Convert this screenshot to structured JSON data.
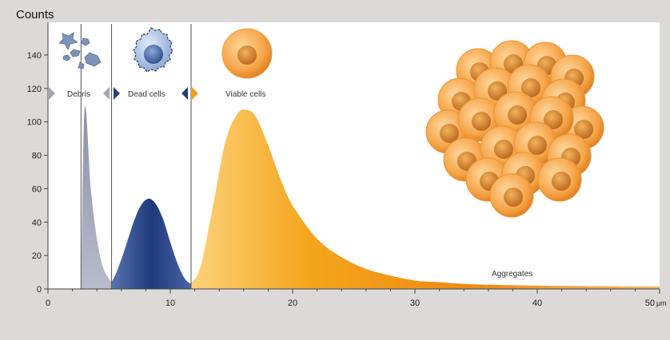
{
  "chart_data": {
    "type": "area",
    "title": "Counts",
    "xlabel": "",
    "ylabel": "Counts",
    "x_unit": "µm",
    "xlim": [
      0,
      50
    ],
    "ylim": [
      0,
      150
    ],
    "x_ticks": [
      0,
      10,
      20,
      30,
      40,
      50
    ],
    "x_tick_labels": [
      "0",
      "10",
      "20",
      "30",
      "40",
      "50"
    ],
    "y_ticks": [
      0,
      20,
      40,
      60,
      80,
      100,
      120,
      140
    ],
    "grid": false,
    "gates": [
      2.7,
      5.2,
      11.7
    ],
    "regions": [
      {
        "name": "Debris",
        "color": "#9a9db0",
        "x": [
          2.7,
          3.0,
          3.5,
          4.0,
          4.5,
          5.0,
          5.2
        ],
        "y": [
          0,
          108,
          60,
          30,
          13,
          6,
          4
        ]
      },
      {
        "name": "Dead cells",
        "color": "#2e4a8a",
        "x": [
          5.2,
          5.6,
          6.2,
          7.0,
          7.6,
          8.2,
          8.8,
          9.4,
          10.0,
          10.6,
          11.2,
          11.7
        ],
        "y": [
          4,
          10,
          22,
          40,
          50,
          54,
          51,
          42,
          28,
          15,
          6,
          3
        ]
      },
      {
        "name": "Viable cells",
        "color": "#f0a020",
        "x": [
          11.7,
          12.5,
          13.5,
          14.5,
          15.5,
          16.3,
          17.0,
          18.0,
          19.0,
          20.0,
          22.0,
          24.0,
          26.0,
          28.0,
          30.0,
          32.0,
          34.0,
          36.0,
          38.0,
          40.0,
          42.0,
          45.0,
          48.0,
          50.0
        ],
        "y": [
          3,
          14,
          50,
          88,
          105,
          107,
          103,
          86,
          66,
          50,
          30,
          19,
          12,
          8,
          5,
          4,
          3,
          2.5,
          2.2,
          2,
          1.8,
          1.6,
          1.5,
          1.5
        ]
      }
    ],
    "annotations": [
      "Debris",
      "Dead cells",
      "Viable cells",
      "Aggregates"
    ]
  }
}
